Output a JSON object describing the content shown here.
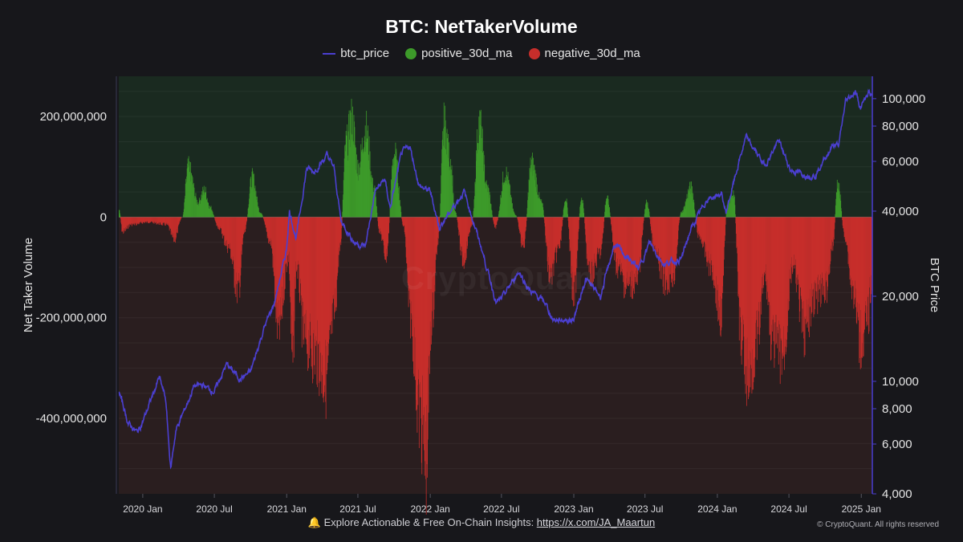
{
  "chart_data": {
    "type": "bar",
    "title": "BTC: NetTakerVolume",
    "ylabel_left": "Net Taker Volume",
    "ylabel_right": "BTC Price",
    "legend": [
      {
        "name": "btc_price",
        "color": "#4b3fd1",
        "kind": "line"
      },
      {
        "name": "positive_30d_ma",
        "color": "#3d9a2a",
        "kind": "dot"
      },
      {
        "name": "negative_30d_ma",
        "color": "#c62e2b",
        "kind": "dot"
      }
    ],
    "x_range": [
      "2019-11-01",
      "2025-01-27"
    ],
    "x_ticks": [
      "2020 Jan",
      "2020 Jul",
      "2021 Jan",
      "2021 Jul",
      "2022 Jan",
      "2022 Jul",
      "2023 Jan",
      "2023 Jul",
      "2024 Jan",
      "2024 Jul",
      "2025 Jan"
    ],
    "y_left_range": [
      -550000000,
      280000000
    ],
    "y_left_ticks": [
      200000000,
      0,
      -200000000,
      -400000000
    ],
    "y_left_tick_labels": [
      "200,000,000",
      "0",
      "-200,000,000",
      "-400,000,000"
    ],
    "y_right_range_log": [
      4000,
      120000
    ],
    "y_right_ticks": [
      100000,
      80000,
      60000,
      40000,
      20000,
      10000,
      8000,
      6000,
      4000
    ],
    "y_right_tick_labels": [
      "100,000",
      "80,000",
      "60,000",
      "40,000",
      "20,000",
      "10,000",
      "8,000",
      "6,000",
      "4,000"
    ],
    "net_taker_volume_keypoints": [
      [
        "2019-11-01",
        15000000
      ],
      [
        "2019-11-10",
        -30000000
      ],
      [
        "2019-12-01",
        -15000000
      ],
      [
        "2020-01-15",
        -10000000
      ],
      [
        "2020-03-01",
        -15000000
      ],
      [
        "2020-03-20",
        -45000000
      ],
      [
        "2020-04-10",
        0
      ],
      [
        "2020-04-25",
        100000000
      ],
      [
        "2020-05-20",
        30000000
      ],
      [
        "2020-06-05",
        55000000
      ],
      [
        "2020-06-20",
        20000000
      ],
      [
        "2020-07-10",
        -20000000
      ],
      [
        "2020-08-05",
        -60000000
      ],
      [
        "2020-08-30",
        -150000000
      ],
      [
        "2020-09-15",
        -30000000
      ],
      [
        "2020-10-05",
        80000000
      ],
      [
        "2020-10-25",
        10000000
      ],
      [
        "2020-11-20",
        -50000000
      ],
      [
        "2020-12-10",
        -230000000
      ],
      [
        "2021-01-05",
        -80000000
      ],
      [
        "2021-01-15",
        -300000000
      ],
      [
        "2021-01-25",
        -100000000
      ],
      [
        "2021-02-15",
        -250000000
      ],
      [
        "2021-03-15",
        -280000000
      ],
      [
        "2021-04-10",
        -330000000
      ],
      [
        "2021-05-01",
        -200000000
      ],
      [
        "2021-05-15",
        -70000000
      ],
      [
        "2021-06-01",
        150000000
      ],
      [
        "2021-06-15",
        200000000
      ],
      [
        "2021-07-01",
        100000000
      ],
      [
        "2021-07-20",
        180000000
      ],
      [
        "2021-08-10",
        60000000
      ],
      [
        "2021-08-25",
        -30000000
      ],
      [
        "2021-09-10",
        -80000000
      ],
      [
        "2021-10-01",
        130000000
      ],
      [
        "2021-10-25",
        -20000000
      ],
      [
        "2021-11-10",
        -200000000
      ],
      [
        "2021-12-05",
        -400000000
      ],
      [
        "2021-12-20",
        -500000000
      ],
      [
        "2022-01-05",
        -200000000
      ],
      [
        "2022-01-20",
        -50000000
      ],
      [
        "2022-02-05",
        190000000
      ],
      [
        "2022-02-20",
        120000000
      ],
      [
        "2022-03-05",
        10000000
      ],
      [
        "2022-03-25",
        -90000000
      ],
      [
        "2022-04-15",
        -20000000
      ],
      [
        "2022-05-05",
        190000000
      ],
      [
        "2022-05-25",
        60000000
      ],
      [
        "2022-06-15",
        -20000000
      ],
      [
        "2022-07-10",
        90000000
      ],
      [
        "2022-08-05",
        5000000
      ],
      [
        "2022-08-25",
        -60000000
      ],
      [
        "2022-09-15",
        110000000
      ],
      [
        "2022-10-10",
        30000000
      ],
      [
        "2022-11-01",
        -120000000
      ],
      [
        "2022-11-25",
        -60000000
      ],
      [
        "2022-12-10",
        40000000
      ],
      [
        "2023-01-01",
        -160000000
      ],
      [
        "2023-01-20",
        40000000
      ],
      [
        "2023-02-10",
        -120000000
      ],
      [
        "2023-03-10",
        -70000000
      ],
      [
        "2023-03-25",
        40000000
      ],
      [
        "2023-04-20",
        -100000000
      ],
      [
        "2023-05-15",
        -140000000
      ],
      [
        "2023-06-10",
        -130000000
      ],
      [
        "2023-07-05",
        30000000
      ],
      [
        "2023-07-25",
        -70000000
      ],
      [
        "2023-08-20",
        -130000000
      ],
      [
        "2023-09-10",
        -120000000
      ],
      [
        "2023-10-01",
        10000000
      ],
      [
        "2023-10-25",
        60000000
      ],
      [
        "2023-11-15",
        -40000000
      ],
      [
        "2023-12-15",
        -100000000
      ],
      [
        "2024-01-10",
        -200000000
      ],
      [
        "2024-01-25",
        20000000
      ],
      [
        "2024-02-10",
        50000000
      ],
      [
        "2024-03-01",
        -250000000
      ],
      [
        "2024-03-20",
        -330000000
      ],
      [
        "2024-04-10",
        -250000000
      ],
      [
        "2024-05-01",
        -120000000
      ],
      [
        "2024-05-20",
        -260000000
      ],
      [
        "2024-06-15",
        -280000000
      ],
      [
        "2024-07-10",
        -100000000
      ],
      [
        "2024-08-10",
        -230000000
      ],
      [
        "2024-09-05",
        -160000000
      ],
      [
        "2024-10-01",
        -150000000
      ],
      [
        "2024-10-20",
        -60000000
      ],
      [
        "2024-11-01",
        70000000
      ],
      [
        "2024-11-20",
        -40000000
      ],
      [
        "2024-12-10",
        -150000000
      ],
      [
        "2024-12-30",
        -250000000
      ],
      [
        "2025-01-15",
        -220000000
      ],
      [
        "2025-01-27",
        -130000000
      ]
    ],
    "btc_price_keypoints": [
      [
        "2019-11-01",
        9300
      ],
      [
        "2019-11-25",
        7100
      ],
      [
        "2019-12-18",
        6600
      ],
      [
        "2020-01-01",
        7200
      ],
      [
        "2020-02-12",
        10300
      ],
      [
        "2020-02-28",
        8700
      ],
      [
        "2020-03-12",
        4900
      ],
      [
        "2020-03-25",
        6700
      ],
      [
        "2020-04-30",
        8800
      ],
      [
        "2020-05-10",
        9600
      ],
      [
        "2020-06-01",
        9700
      ],
      [
        "2020-07-01",
        9200
      ],
      [
        "2020-08-01",
        11500
      ],
      [
        "2020-09-05",
        10200
      ],
      [
        "2020-10-01",
        10800
      ],
      [
        "2020-11-05",
        15500
      ],
      [
        "2020-12-01",
        19000
      ],
      [
        "2020-12-31",
        29000
      ],
      [
        "2021-01-08",
        40000
      ],
      [
        "2021-01-25",
        32000
      ],
      [
        "2021-02-21",
        57000
      ],
      [
        "2021-03-10",
        55000
      ],
      [
        "2021-04-14",
        63000
      ],
      [
        "2021-05-01",
        57000
      ],
      [
        "2021-05-19",
        37000
      ],
      [
        "2021-06-22",
        31000
      ],
      [
        "2021-07-20",
        30000
      ],
      [
        "2021-08-14",
        47000
      ],
      [
        "2021-09-07",
        52000
      ],
      [
        "2021-09-21",
        41000
      ],
      [
        "2021-10-20",
        64000
      ],
      [
        "2021-11-10",
        68000
      ],
      [
        "2021-12-04",
        49000
      ],
      [
        "2022-01-01",
        47000
      ],
      [
        "2022-01-24",
        35000
      ],
      [
        "2022-03-28",
        47000
      ],
      [
        "2022-05-10",
        30000
      ],
      [
        "2022-06-18",
        19000
      ],
      [
        "2022-07-01",
        19500
      ],
      [
        "2022-08-14",
        24500
      ],
      [
        "2022-09-10",
        21000
      ],
      [
        "2022-10-20",
        19000
      ],
      [
        "2022-11-09",
        16500
      ],
      [
        "2022-12-31",
        16500
      ],
      [
        "2023-01-31",
        23000
      ],
      [
        "2023-03-10",
        20000
      ],
      [
        "2023-04-14",
        30500
      ],
      [
        "2023-06-15",
        25000
      ],
      [
        "2023-07-13",
        31000
      ],
      [
        "2023-08-17",
        26000
      ],
      [
        "2023-10-01",
        27000
      ],
      [
        "2023-10-24",
        34000
      ],
      [
        "2023-12-05",
        44000
      ],
      [
        "2024-01-11",
        46000
      ],
      [
        "2024-01-23",
        39500
      ],
      [
        "2024-02-28",
        62000
      ],
      [
        "2024-03-14",
        73000
      ],
      [
        "2024-05-01",
        58000
      ],
      [
        "2024-06-05",
        71000
      ],
      [
        "2024-07-05",
        56000
      ],
      [
        "2024-08-05",
        54000
      ],
      [
        "2024-09-06",
        53500
      ],
      [
        "2024-10-20",
        68500
      ],
      [
        "2024-11-05",
        68500
      ],
      [
        "2024-11-22",
        98000
      ],
      [
        "2024-12-17",
        106000
      ],
      [
        "2024-12-30",
        93000
      ],
      [
        "2025-01-20",
        106000
      ],
      [
        "2025-01-27",
        101000
      ]
    ]
  },
  "footer": {
    "bell_icon": "🔔",
    "text": "Explore Actionable & Free On-Chain Insights: ",
    "link_text": "https://x.com/JA_Maartun",
    "copyright": "© CryptoQuant. All rights reserved",
    "watermark": "CryptoQuant"
  },
  "colors": {
    "background": "#17171b",
    "positive_zone": "#1a2a20",
    "negative_zone": "#2a1e1f",
    "positive_bar": "#3d9a2a",
    "negative_bar": "#c62e2b",
    "price_line": "#4b3fd1"
  }
}
